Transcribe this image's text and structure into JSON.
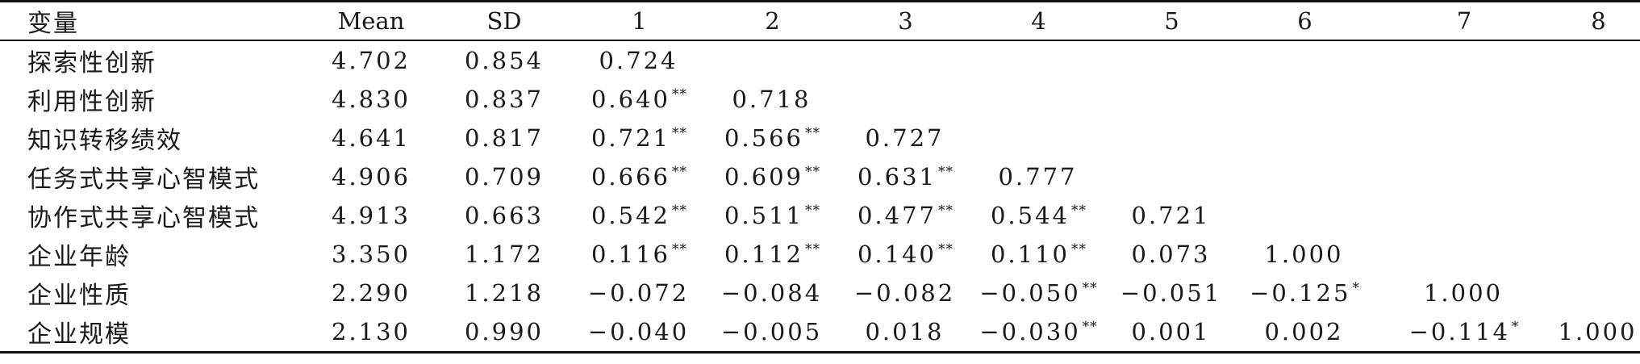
{
  "table": {
    "headers": [
      "变量",
      "Mean",
      "SD",
      "1",
      "2",
      "3",
      "4",
      "5",
      "6",
      "7",
      "8"
    ],
    "rows": [
      {
        "label": "探索性创新",
        "mean": "4.702",
        "sd": "0.854",
        "c": [
          [
            "0.724",
            ""
          ],
          [
            "",
            ""
          ],
          [
            "",
            ""
          ],
          [
            "",
            ""
          ],
          [
            "",
            ""
          ],
          [
            "",
            ""
          ],
          [
            "",
            ""
          ],
          [
            "",
            ""
          ]
        ]
      },
      {
        "label": "利用性创新",
        "mean": "4.830",
        "sd": "0.837",
        "c": [
          [
            "0.640",
            "**"
          ],
          [
            "0.718",
            ""
          ],
          [
            "",
            ""
          ],
          [
            "",
            ""
          ],
          [
            "",
            ""
          ],
          [
            "",
            ""
          ],
          [
            "",
            ""
          ],
          [
            "",
            ""
          ]
        ]
      },
      {
        "label": "知识转移绩效",
        "mean": "4.641",
        "sd": "0.817",
        "c": [
          [
            "0.721",
            "**"
          ],
          [
            "0.566",
            "**"
          ],
          [
            "0.727",
            ""
          ],
          [
            "",
            ""
          ],
          [
            "",
            ""
          ],
          [
            "",
            ""
          ],
          [
            "",
            ""
          ],
          [
            "",
            ""
          ]
        ]
      },
      {
        "label": "任务式共享心智模式",
        "mean": "4.906",
        "sd": "0.709",
        "c": [
          [
            "0.666",
            "**"
          ],
          [
            "0.609",
            "**"
          ],
          [
            "0.631",
            "**"
          ],
          [
            "0.777",
            ""
          ],
          [
            "",
            ""
          ],
          [
            "",
            ""
          ],
          [
            "",
            ""
          ],
          [
            "",
            ""
          ]
        ]
      },
      {
        "label": "协作式共享心智模式",
        "mean": "4.913",
        "sd": "0.663",
        "c": [
          [
            "0.542",
            "**"
          ],
          [
            "0.511",
            "**"
          ],
          [
            "0.477",
            "**"
          ],
          [
            "0.544",
            "**"
          ],
          [
            "0.721",
            ""
          ],
          [
            "",
            ""
          ],
          [
            "",
            ""
          ],
          [
            "",
            ""
          ]
        ]
      },
      {
        "label": "企业年龄",
        "mean": "3.350",
        "sd": "1.172",
        "c": [
          [
            "0.116",
            "**"
          ],
          [
            "0.112",
            "**"
          ],
          [
            "0.140",
            "**"
          ],
          [
            "0.110",
            "**"
          ],
          [
            "0.073",
            ""
          ],
          [
            "1.000",
            ""
          ],
          [
            "",
            ""
          ],
          [
            "",
            ""
          ]
        ]
      },
      {
        "label": "企业性质",
        "mean": "2.290",
        "sd": "1.218",
        "c": [
          [
            "−0.072",
            ""
          ],
          [
            "−0.084",
            ""
          ],
          [
            "−0.082",
            ""
          ],
          [
            "−0.050",
            "**"
          ],
          [
            "−0.051",
            ""
          ],
          [
            "−0.125",
            "*"
          ],
          [
            "1.000",
            ""
          ],
          [
            "",
            ""
          ]
        ]
      },
      {
        "label": "企业规模",
        "mean": "2.130",
        "sd": "0.990",
        "c": [
          [
            "−0.040",
            ""
          ],
          [
            "−0.005",
            ""
          ],
          [
            "0.018",
            ""
          ],
          [
            "−0.030",
            "**"
          ],
          [
            "0.001",
            ""
          ],
          [
            "0.002",
            ""
          ],
          [
            "−0.114",
            "*"
          ],
          [
            "1.000",
            ""
          ]
        ]
      }
    ]
  }
}
